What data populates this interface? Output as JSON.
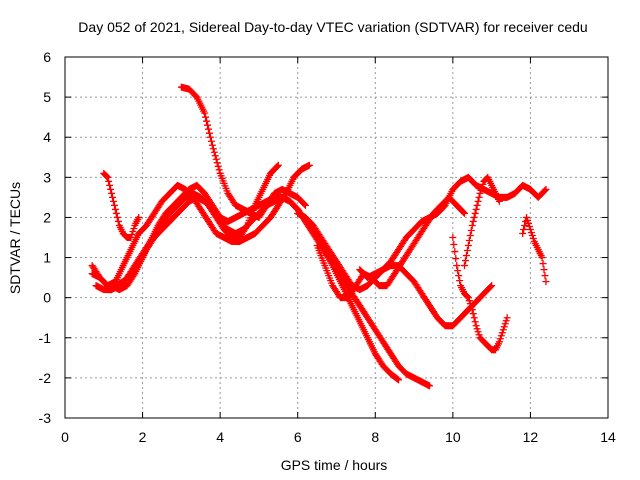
{
  "chart_data": {
    "type": "scatter",
    "title": "Day 052 of 2021, Sidereal Day-to-day VTEC variation (SDTVAR) for receiver cedu",
    "xlabel": "GPS time / hours",
    "ylabel": "SDTVAR / TECUs",
    "xlim": [
      0,
      14
    ],
    "ylim": [
      -3,
      6
    ],
    "xticks": [
      0,
      2,
      4,
      6,
      8,
      10,
      12,
      14
    ],
    "yticks": [
      -3,
      -2,
      -1,
      0,
      1,
      2,
      3,
      4,
      5,
      6
    ],
    "grid": true,
    "legend": "none",
    "marker": "+",
    "color": "#ff0000",
    "series": [
      {
        "x": [
          1.0,
          1.1,
          1.2,
          1.3,
          1.4,
          1.5,
          1.6,
          1.7,
          1.8,
          1.9
        ],
        "y": [
          3.1,
          3.0,
          2.6,
          2.2,
          1.8,
          1.6,
          1.5,
          1.5,
          1.8,
          2.0
        ]
      },
      {
        "x": [
          3.0,
          3.2,
          3.4,
          3.6,
          3.8,
          4.0,
          4.2,
          4.4,
          4.6,
          4.8,
          5.0,
          5.2,
          5.4,
          5.6,
          5.8,
          6.0,
          6.2
        ],
        "y": [
          5.25,
          5.2,
          5.0,
          4.6,
          3.8,
          3.1,
          2.6,
          2.3,
          2.2,
          2.1,
          2.0,
          2.3,
          2.6,
          2.7,
          2.6,
          2.5,
          2.3
        ]
      },
      {
        "x": [
          0.7,
          0.9,
          1.1,
          1.3,
          1.5,
          1.7,
          1.9,
          2.1,
          2.3,
          2.5,
          2.7,
          2.9,
          3.1,
          3.3,
          3.5,
          3.7,
          3.9,
          4.1,
          4.3,
          4.5,
          4.7,
          4.9,
          5.1,
          5.3,
          5.5
        ],
        "y": [
          0.6,
          0.5,
          0.3,
          0.3,
          0.4,
          0.6,
          0.9,
          1.2,
          1.5,
          1.8,
          2.1,
          2.3,
          2.5,
          2.6,
          2.5,
          2.3,
          2.0,
          1.7,
          1.5,
          1.5,
          1.8,
          2.3,
          2.7,
          3.1,
          3.3
        ]
      },
      {
        "x": [
          0.7,
          0.9,
          1.1,
          1.3,
          1.5,
          1.7,
          1.9,
          2.1,
          2.3,
          2.5,
          2.7,
          2.9,
          3.1,
          3.3,
          3.5,
          3.7,
          3.9,
          4.1,
          4.3,
          4.5,
          4.7,
          4.9,
          5.1,
          5.3,
          5.5,
          5.7,
          5.9,
          6.1,
          6.3
        ],
        "y": [
          0.8,
          0.5,
          0.3,
          0.4,
          0.8,
          1.2,
          1.6,
          1.8,
          2.1,
          2.4,
          2.6,
          2.8,
          2.7,
          2.5,
          2.2,
          1.9,
          1.6,
          1.5,
          1.4,
          1.4,
          1.5,
          1.6,
          1.8,
          2.0,
          2.3,
          2.6,
          3.0,
          3.2,
          3.3
        ]
      },
      {
        "x": [
          1.2,
          1.4,
          1.6,
          1.8,
          2.0,
          2.2,
          2.4,
          2.6,
          2.8,
          3.0,
          3.2,
          3.4,
          3.6,
          3.8,
          4.0,
          4.2,
          4.4,
          4.6,
          4.8,
          5.0,
          5.2,
          5.4,
          5.6,
          5.8,
          6.0,
          6.2,
          6.4,
          6.6,
          6.8,
          7.0,
          7.2,
          7.4,
          7.6,
          7.8,
          8.0,
          8.2,
          8.4,
          8.6,
          8.8,
          9.0,
          9.2,
          9.4
        ],
        "y": [
          0.3,
          0.2,
          0.3,
          0.6,
          1.0,
          1.4,
          1.8,
          2.1,
          2.3,
          2.5,
          2.7,
          2.8,
          2.6,
          2.3,
          2.0,
          1.9,
          2.0,
          2.1,
          2.2,
          2.3,
          2.4,
          2.5,
          2.5,
          2.4,
          2.2,
          1.9,
          1.6,
          1.3,
          1.0,
          0.7,
          0.4,
          0.1,
          -0.2,
          -0.5,
          -0.8,
          -1.1,
          -1.4,
          -1.7,
          -1.9,
          -2.0,
          -2.1,
          -2.2
        ]
      },
      {
        "x": [
          0.8,
          1.0,
          1.2,
          1.4,
          1.6,
          1.8,
          2.0,
          2.2,
          2.4,
          2.6,
          2.8,
          3.0,
          3.2,
          3.4,
          3.6,
          3.8,
          4.0,
          4.2,
          4.4,
          4.6,
          4.8,
          5.0,
          5.2,
          5.4,
          5.6,
          5.8,
          6.0,
          6.2,
          6.4,
          6.6,
          6.8,
          7.0,
          7.2,
          7.4,
          7.6,
          7.8,
          8.0,
          8.2,
          8.4,
          8.6
        ],
        "y": [
          0.3,
          0.2,
          0.2,
          0.3,
          0.5,
          0.8,
          1.1,
          1.4,
          1.6,
          1.8,
          2.0,
          2.2,
          2.4,
          2.5,
          2.4,
          2.2,
          1.9,
          1.7,
          1.6,
          1.7,
          1.9,
          2.1,
          2.3,
          2.4,
          2.5,
          2.4,
          2.2,
          1.9,
          1.6,
          1.3,
          1.0,
          0.6,
          0.2,
          -0.2,
          -0.6,
          -1.0,
          -1.4,
          -1.7,
          -1.9,
          -2.05
        ]
      },
      {
        "x": [
          6.0,
          6.2,
          6.4,
          6.6,
          6.8,
          7.0,
          7.2,
          7.4,
          7.6,
          7.8,
          8.0,
          8.2,
          8.4,
          8.6,
          8.8,
          9.0,
          9.2,
          9.4,
          9.6,
          9.8,
          10.0,
          10.2,
          10.4,
          10.6,
          10.8,
          11.0
        ],
        "y": [
          2.1,
          2.0,
          1.8,
          1.5,
          1.2,
          0.9,
          0.6,
          0.3,
          0.2,
          0.3,
          0.5,
          0.7,
          0.8,
          0.8,
          0.6,
          0.4,
          0.1,
          -0.2,
          -0.5,
          -0.7,
          -0.7,
          -0.5,
          -0.3,
          -0.1,
          0.1,
          0.3
        ]
      },
      {
        "x": [
          6.5,
          6.7,
          6.9,
          7.1,
          7.3,
          7.5,
          7.7,
          7.9,
          8.1,
          8.3,
          8.5,
          8.7,
          8.9,
          9.1,
          9.3,
          9.5,
          9.7,
          9.9,
          10.1,
          10.3
        ],
        "y": [
          1.3,
          0.8,
          0.3,
          0.0,
          0.0,
          0.3,
          0.6,
          0.5,
          0.3,
          0.3,
          0.6,
          0.9,
          1.2,
          1.5,
          1.8,
          2.1,
          2.3,
          2.5,
          2.3,
          2.1
        ]
      },
      {
        "x": [
          7.6,
          7.8,
          8.0,
          8.2,
          8.4,
          8.6,
          8.8,
          9.0,
          9.2,
          9.4,
          9.6,
          9.8,
          10.0,
          10.2,
          10.4,
          10.6,
          10.8,
          11.0,
          11.2,
          11.4,
          11.6,
          11.8,
          12.0,
          12.2,
          12.4
        ],
        "y": [
          0.7,
          0.5,
          0.6,
          0.7,
          0.9,
          1.2,
          1.5,
          1.7,
          1.9,
          2.0,
          2.1,
          2.3,
          2.7,
          2.9,
          3.0,
          2.8,
          2.7,
          2.6,
          2.5,
          2.5,
          2.6,
          2.8,
          2.7,
          2.5,
          2.7
        ]
      },
      {
        "x": [
          10.0,
          10.1,
          10.2,
          10.3,
          10.4,
          10.5,
          10.6,
          10.7,
          10.8,
          10.9,
          11.0,
          11.1,
          11.2,
          11.3,
          11.4
        ],
        "y": [
          1.5,
          0.8,
          0.3,
          0.1,
          0.0,
          -0.3,
          -0.7,
          -1.0,
          -1.1,
          -1.2,
          -1.3,
          -1.3,
          -1.1,
          -0.8,
          -0.5
        ]
      },
      {
        "x": [
          10.3,
          10.4,
          10.5,
          10.6,
          10.7,
          10.8,
          10.9,
          11.0,
          11.1,
          11.2
        ],
        "y": [
          0.8,
          1.3,
          1.8,
          2.2,
          2.6,
          2.9,
          3.0,
          2.8,
          2.6,
          2.4
        ]
      },
      {
        "x": [
          11.8,
          11.9,
          12.0,
          12.1,
          12.2,
          12.3,
          12.4
        ],
        "y": [
          1.6,
          2.0,
          1.7,
          1.4,
          1.2,
          1.0,
          0.4
        ]
      }
    ]
  }
}
